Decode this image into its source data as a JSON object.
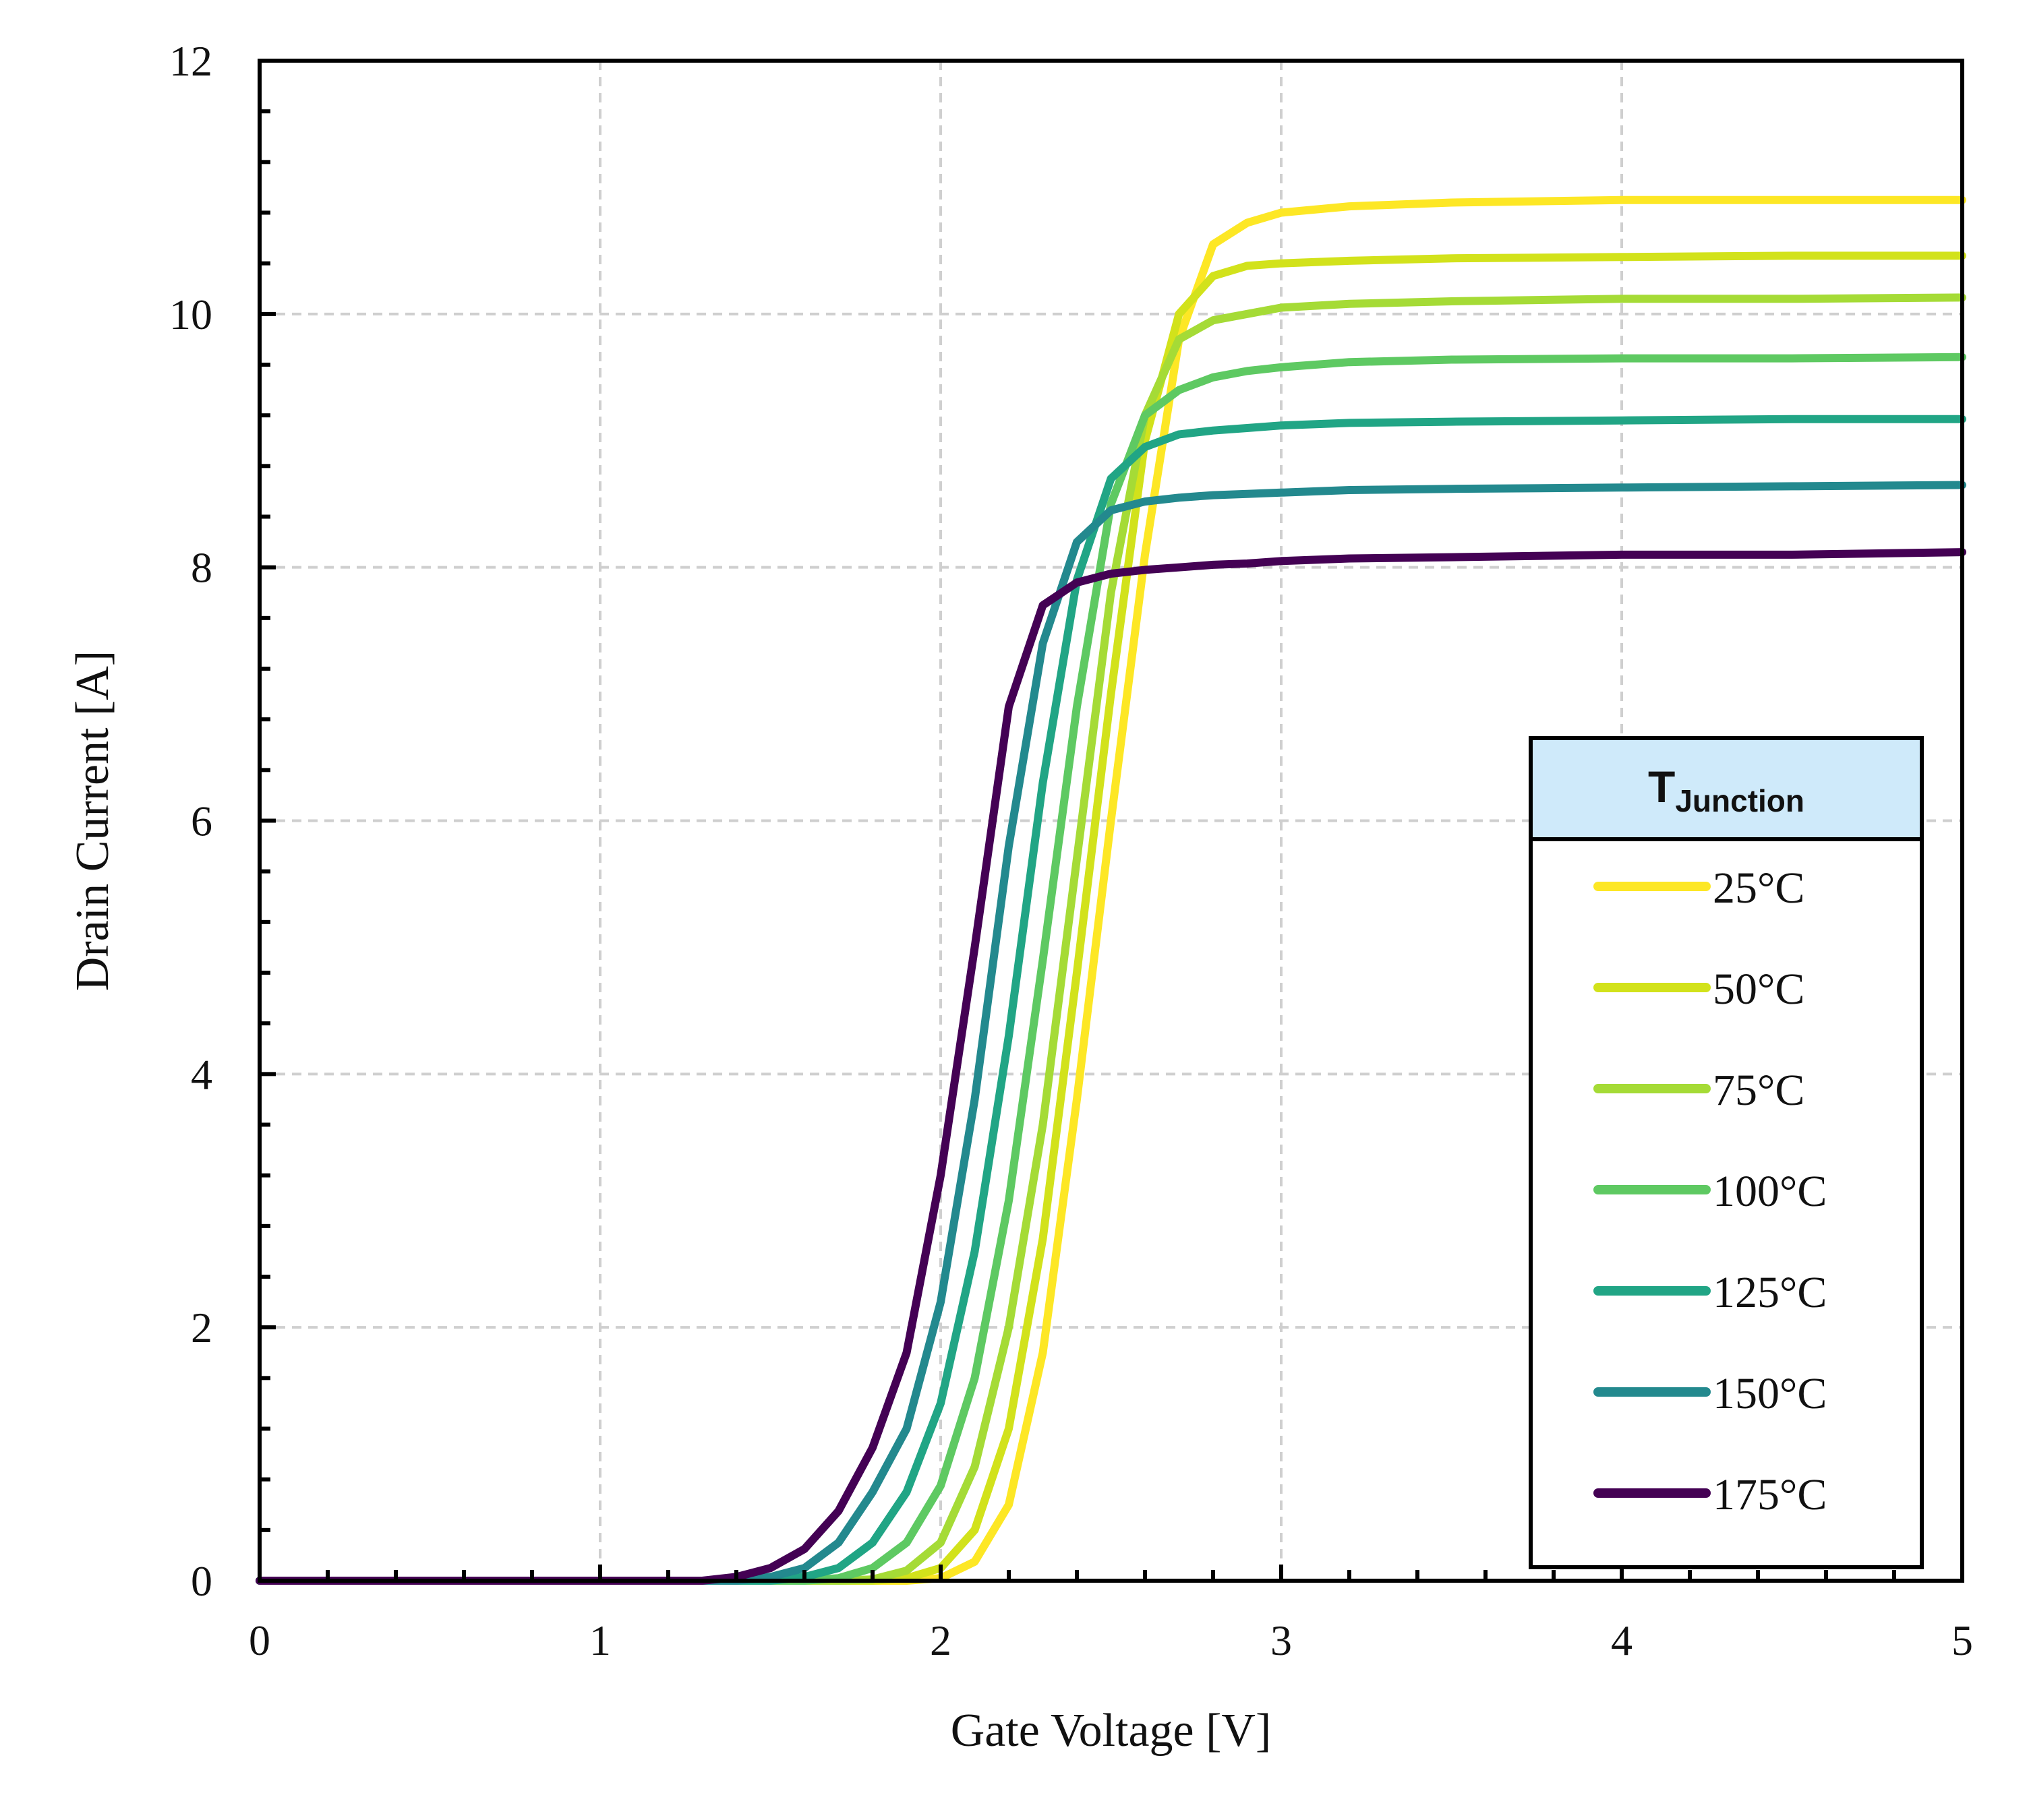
{
  "chart_data": {
    "type": "line",
    "title": "",
    "xlabel": "Gate Voltage [V]",
    "ylabel": "Drain Current [A]",
    "xlim": [
      0,
      5
    ],
    "ylim": [
      0,
      12
    ],
    "xticks": [
      0,
      1,
      2,
      3,
      4,
      5
    ],
    "yticks": [
      0,
      2,
      4,
      6,
      8,
      10,
      12
    ],
    "x_tick_labels": [
      "0",
      "1",
      "2",
      "3",
      "4",
      "5"
    ],
    "y_tick_labels": [
      "0",
      "2",
      "4",
      "6",
      "8",
      "10",
      "12"
    ],
    "grid": true,
    "legend": {
      "title_main": "T",
      "title_sub": "Junction",
      "placement": "lower-right"
    },
    "x": [
      0,
      0.5,
      1.0,
      1.3,
      1.4,
      1.5,
      1.6,
      1.7,
      1.8,
      1.9,
      2.0,
      2.1,
      2.2,
      2.3,
      2.4,
      2.5,
      2.6,
      2.7,
      2.8,
      2.9,
      3.0,
      3.2,
      3.5,
      4.0,
      4.5,
      5.0
    ],
    "series": [
      {
        "name": "25°C",
        "color": "#FDE725",
        "values": [
          0,
          0,
          0,
          0,
          0,
          0,
          0,
          0,
          0,
          0,
          0.02,
          0.15,
          0.6,
          1.8,
          3.8,
          6.0,
          8.1,
          9.8,
          10.55,
          10.72,
          10.8,
          10.85,
          10.88,
          10.9,
          10.9,
          10.9
        ]
      },
      {
        "name": "50°C",
        "color": "#D2E21B",
        "values": [
          0,
          0,
          0,
          0,
          0,
          0,
          0,
          0,
          0,
          0.02,
          0.1,
          0.4,
          1.2,
          2.7,
          4.8,
          7.0,
          9.0,
          10.0,
          10.3,
          10.38,
          10.4,
          10.42,
          10.44,
          10.45,
          10.46,
          10.46
        ]
      },
      {
        "name": "75°C",
        "color": "#A5DB36",
        "values": [
          0,
          0,
          0,
          0,
          0,
          0,
          0,
          0,
          0.01,
          0.08,
          0.3,
          0.9,
          2.0,
          3.6,
          5.7,
          7.8,
          9.2,
          9.8,
          9.95,
          10.0,
          10.05,
          10.08,
          10.1,
          10.12,
          10.12,
          10.13
        ]
      },
      {
        "name": "100°C",
        "color": "#5EC962",
        "values": [
          0,
          0,
          0,
          0,
          0,
          0,
          0,
          0.02,
          0.1,
          0.3,
          0.75,
          1.6,
          3.0,
          4.9,
          6.9,
          8.5,
          9.2,
          9.4,
          9.5,
          9.55,
          9.58,
          9.62,
          9.64,
          9.65,
          9.65,
          9.66
        ]
      },
      {
        "name": "125°C",
        "color": "#21A585",
        "values": [
          0,
          0,
          0,
          0,
          0,
          0,
          0.03,
          0.1,
          0.3,
          0.7,
          1.4,
          2.6,
          4.3,
          6.3,
          7.9,
          8.7,
          8.95,
          9.05,
          9.08,
          9.1,
          9.12,
          9.14,
          9.15,
          9.16,
          9.17,
          9.17
        ]
      },
      {
        "name": "150°C",
        "color": "#23898E",
        "values": [
          0,
          0,
          0,
          0,
          0,
          0.03,
          0.1,
          0.3,
          0.7,
          1.2,
          2.2,
          3.8,
          5.8,
          7.4,
          8.2,
          8.45,
          8.52,
          8.55,
          8.57,
          8.58,
          8.59,
          8.61,
          8.62,
          8.63,
          8.64,
          8.65
        ]
      },
      {
        "name": "175°C",
        "color": "#440154",
        "values": [
          0,
          0,
          0,
          0,
          0.03,
          0.1,
          0.25,
          0.55,
          1.05,
          1.8,
          3.2,
          5.0,
          6.9,
          7.7,
          7.88,
          7.95,
          7.98,
          8.0,
          8.02,
          8.03,
          8.05,
          8.07,
          8.08,
          8.1,
          8.1,
          8.12
        ]
      }
    ]
  }
}
